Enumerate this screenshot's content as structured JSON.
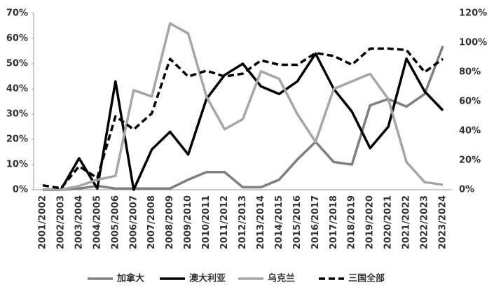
{
  "chart_data": {
    "type": "line",
    "categories": [
      "2001/2002",
      "2002/2003",
      "2003/2004",
      "2004/2005",
      "2005/2006",
      "2006/2007",
      "2007/2008",
      "2008/2009",
      "2009/2010",
      "2010/2011",
      "2011/2012",
      "2012/2013",
      "2013/2014",
      "2014/2015",
      "2015/2016",
      "2016/2017",
      "2017/2018",
      "2018/2019",
      "2019/2020",
      "2020/2021",
      "2021/2022",
      "2022/2023",
      "2023/2024"
    ],
    "series": [
      {
        "name": "加拿大",
        "color": "#7f7f7f",
        "values": [
          0,
          0,
          0.5,
          1.5,
          0.5,
          0.5,
          0.5,
          0.5,
          4,
          7,
          7,
          1,
          1,
          4,
          12,
          19,
          11,
          10,
          33.5,
          36,
          33,
          38,
          57
        ]
      },
      {
        "name": "澳大利亚",
        "color": "#000000",
        "values": [
          0,
          0,
          12.5,
          0.5,
          43,
          0,
          16,
          23,
          14,
          36,
          45.5,
          50,
          41,
          38,
          43,
          54,
          40,
          31,
          16.5,
          25,
          52,
          39,
          31.5
        ]
      },
      {
        "name": "乌克兰",
        "color": "#a6a6a6",
        "values": [
          0,
          0,
          1.5,
          4,
          5.5,
          39.5,
          37,
          66,
          62,
          37,
          24,
          28,
          47,
          44,
          30,
          19,
          40,
          43,
          46,
          36,
          11,
          3,
          2
        ]
      },
      {
        "name": "三国全部",
        "color": "#000000",
        "axis": "y2",
        "dashed": true,
        "values": [
          3,
          1,
          16,
          8,
          50,
          41,
          52,
          89,
          77,
          81,
          77,
          79,
          88,
          85,
          85,
          93,
          91,
          85,
          96,
          96,
          95,
          80,
          89
        ]
      }
    ],
    "ylim": [
      0,
      70
    ],
    "yticks": [
      {
        "value": 0,
        "label": "0%"
      },
      {
        "value": 10,
        "label": "10%"
      },
      {
        "value": 20,
        "label": "20%"
      },
      {
        "value": 30,
        "label": "30%"
      },
      {
        "value": 40,
        "label": "40%"
      },
      {
        "value": 50,
        "label": "50%"
      },
      {
        "value": 60,
        "label": "60%"
      },
      {
        "value": 70,
        "label": "70%"
      }
    ],
    "y2lim": [
      0,
      120
    ],
    "y2ticks": [
      {
        "value": 0,
        "label": "0%"
      },
      {
        "value": 20,
        "label": "20%"
      },
      {
        "value": 40,
        "label": "40%"
      },
      {
        "value": 60,
        "label": "60%"
      },
      {
        "value": 80,
        "label": "80%"
      },
      {
        "value": 100,
        "label": "100%"
      },
      {
        "value": 120,
        "label": "120%"
      }
    ],
    "grid": false,
    "legend_position": "bottom"
  }
}
